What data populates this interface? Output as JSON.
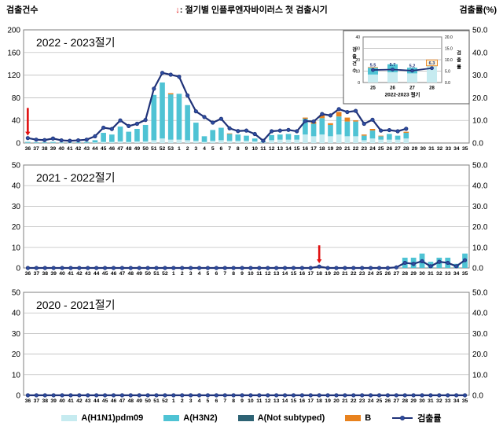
{
  "header": {
    "left_label": "검출건수",
    "arrow": "↓",
    "center_label": ": 절기별 인플루엔자바이러스 첫 검출시기",
    "right_label": "검출률(%)"
  },
  "colors": {
    "h1n1": "#c6ebf0",
    "h3n2": "#4fc3d4",
    "a_not_subtyped": "#2e6374",
    "b": "#e8821e",
    "rate_line": "#1f3278",
    "rate_marker": "#2e4da0",
    "arrow": "#e01010",
    "grid": "#b3b3b3",
    "border": "#7f7f7f"
  },
  "legend": [
    {
      "name": "a-h1n1pdm09",
      "label": "A(H1N1)pdm09",
      "color": "#c6ebf0",
      "type": "box"
    },
    {
      "name": "a-h3n2",
      "label": "A(H3N2)",
      "color": "#4fc3d4",
      "type": "box"
    },
    {
      "name": "a-not-subtyped",
      "label": "A(Not subtyped)",
      "color": "#2e6374",
      "type": "box"
    },
    {
      "name": "b",
      "label": "B",
      "color": "#e8821e",
      "type": "box"
    },
    {
      "name": "rate",
      "label": "검출률",
      "color": "#1f3278",
      "type": "line"
    }
  ],
  "chart_data": [
    {
      "type": "bar+line",
      "title": "2022 - 2023절기",
      "categories": [
        "36",
        "37",
        "38",
        "39",
        "40",
        "41",
        "42",
        "43",
        "44",
        "45",
        "46",
        "47",
        "48",
        "49",
        "50",
        "51",
        "52",
        "53",
        "1",
        "2",
        "3",
        "4",
        "5",
        "6",
        "7",
        "8",
        "9",
        "10",
        "11",
        "12",
        "13",
        "14",
        "15",
        "16",
        "17",
        "18",
        "19",
        "20",
        "21",
        "22",
        "23",
        "24",
        "25",
        "26",
        "27",
        "28",
        "29",
        "30",
        "31",
        "32",
        "33",
        "34",
        "35"
      ],
      "left_axis": {
        "ticks": [
          0,
          40,
          80,
          120,
          160,
          200
        ],
        "max": 200
      },
      "right_axis": {
        "ticks": [
          "0.0",
          "10.0",
          "20.0",
          "30.0",
          "40.0",
          "50.0"
        ],
        "max": 50
      },
      "series": [
        {
          "name": "A(H1N1)pdm09",
          "values": [
            0.5,
            0.5,
            0.5,
            0.5,
            0.3,
            0.3,
            0.5,
            0.5,
            1,
            2,
            2,
            3,
            2,
            3,
            3,
            5,
            8,
            6,
            6,
            5,
            4,
            2,
            4,
            5,
            4,
            4,
            4,
            3,
            1,
            5,
            6,
            6,
            6,
            15,
            12,
            15,
            12,
            15,
            12,
            12,
            5,
            8,
            6,
            6,
            6,
            8,
            0,
            0,
            0,
            0,
            0,
            0,
            0
          ]
        },
        {
          "name": "A(H3N2)",
          "values": [
            1.5,
            1,
            1,
            1.5,
            0.7,
            0.7,
            1,
            1.5,
            4,
            16,
            13,
            26,
            18,
            22,
            29,
            80,
            99,
            80,
            81,
            62,
            32,
            10,
            19,
            22,
            12,
            11,
            9,
            5,
            2,
            9,
            9,
            10,
            8,
            28,
            22,
            29,
            20,
            32,
            26,
            26,
            8,
            14,
            6,
            10,
            7,
            10,
            0,
            0,
            0,
            0,
            0,
            0,
            0
          ]
        },
        {
          "name": "B",
          "values": [
            0,
            0,
            0,
            0,
            0,
            0,
            0,
            0,
            0,
            0,
            0,
            0,
            0,
            0,
            0,
            0,
            0,
            2,
            0,
            0,
            0,
            0,
            0,
            0,
            1,
            0,
            0,
            0,
            0,
            0,
            0,
            0,
            0,
            2,
            4,
            6,
            3,
            8,
            7,
            2,
            2,
            3,
            1,
            0,
            0,
            2,
            0,
            0,
            0,
            0,
            0,
            0,
            0
          ]
        }
      ],
      "rate": [
        2.2,
        1.5,
        1.3,
        2.0,
        1.2,
        1.0,
        1.2,
        1.5,
        3.0,
        6.8,
        6.2,
        10.0,
        7.5,
        8.5,
        10.2,
        24.0,
        31.0,
        30.2,
        29.3,
        21.0,
        14.0,
        11.5,
        9.0,
        10.7,
        6.5,
        5.3,
        5.5,
        4.0,
        1.0,
        5.2,
        5.5,
        5.8,
        5.2,
        9.7,
        9.5,
        12.8,
        12.2,
        15.0,
        13.7,
        14.2,
        8.5,
        10.3,
        5.5,
        5.7,
        5.2,
        6.3,
        null,
        null,
        null,
        null,
        null,
        null,
        null
      ],
      "first_detection_arrow": {
        "week": "36",
        "from": 62,
        "to": 13
      },
      "inset": {
        "type": "bar+line",
        "x_title": "2022-2023 절기",
        "left_label": "검출건수",
        "right_label": "검출률",
        "categories": [
          "25",
          "26",
          "27",
          "28"
        ],
        "left_axis": {
          "ticks": [
            0,
            10,
            20,
            30,
            40
          ],
          "max": 40
        },
        "right_axis": {
          "ticks": [
            "0.0",
            "5.0",
            "10.0",
            "15.0",
            "20.0"
          ],
          "max": 20
        },
        "series": [
          {
            "name": "A(H1N1)pdm09",
            "values": [
              7,
              9,
              8,
              16
            ]
          },
          {
            "name": "A(H3N2)",
            "values": [
              6,
              7,
              5,
              3
            ]
          },
          {
            "name": "B",
            "values": [
              0.5,
              0,
              0,
              1
            ]
          }
        ],
        "rate": [
          5.5,
          5.7,
          5.2,
          6.3
        ],
        "rate_labels": [
          "5.5",
          "5.7",
          "5.2",
          "6.3"
        ],
        "boxed_label_index": 3
      }
    },
    {
      "type": "bar+line",
      "title": "2021 - 2022절기",
      "categories": [
        "36",
        "37",
        "38",
        "39",
        "40",
        "41",
        "42",
        "43",
        "44",
        "45",
        "46",
        "47",
        "48",
        "49",
        "50",
        "51",
        "52",
        "1",
        "2",
        "3",
        "4",
        "5",
        "6",
        "7",
        "8",
        "9",
        "10",
        "11",
        "12",
        "13",
        "14",
        "15",
        "16",
        "17",
        "18",
        "19",
        "20",
        "21",
        "22",
        "23",
        "24",
        "25",
        "26",
        "27",
        "28",
        "29",
        "30",
        "31",
        "32",
        "33",
        "34",
        "35"
      ],
      "left_axis": {
        "ticks": [
          0,
          10,
          20,
          30,
          40,
          50
        ],
        "max": 50
      },
      "right_axis": {
        "ticks": [
          "0.0",
          "10.0",
          "20.0",
          "30.0",
          "40.0",
          "50.0"
        ],
        "max": 50
      },
      "series": [
        {
          "name": "A(H3N2)",
          "values": [
            0,
            0,
            0,
            0,
            0,
            0,
            0,
            0,
            0,
            0,
            0,
            0,
            0,
            0,
            0,
            0,
            0,
            0,
            0,
            0,
            0,
            0,
            0,
            0,
            0,
            0,
            0,
            0,
            0,
            0,
            0,
            0,
            0,
            0,
            0,
            0,
            0,
            0,
            0,
            0,
            0,
            0,
            0,
            0,
            5,
            5,
            7,
            3,
            5,
            5,
            2,
            7
          ]
        }
      ],
      "rate": [
        0,
        0,
        0,
        0,
        0,
        0,
        0,
        0,
        0,
        0,
        0,
        0,
        0,
        0,
        0,
        0,
        0,
        0,
        0,
        0,
        0,
        0,
        0,
        0,
        0,
        0,
        0,
        0,
        0,
        0,
        0,
        0,
        0,
        0,
        0.7,
        0,
        0,
        0,
        0,
        0,
        0,
        0,
        0,
        0.3,
        2.5,
        2.0,
        3.3,
        0.8,
        3.0,
        2.5,
        0.8,
        3.8
      ],
      "first_detection_arrow": {
        "week": "18",
        "from": 11,
        "to": 2.3
      }
    },
    {
      "type": "bar+line",
      "title": "2020 - 2021절기",
      "categories": [
        "36",
        "37",
        "38",
        "39",
        "40",
        "41",
        "42",
        "43",
        "44",
        "45",
        "46",
        "47",
        "48",
        "49",
        "50",
        "51",
        "52",
        "1",
        "2",
        "3",
        "4",
        "5",
        "6",
        "7",
        "8",
        "9",
        "10",
        "11",
        "12",
        "13",
        "14",
        "15",
        "16",
        "17",
        "18",
        "19",
        "20",
        "21",
        "22",
        "23",
        "24",
        "25",
        "26",
        "27",
        "28",
        "29",
        "30",
        "31",
        "32",
        "33",
        "34",
        "35"
      ],
      "left_axis": {
        "ticks": [
          0,
          10,
          20,
          30,
          40,
          50
        ],
        "max": 50
      },
      "right_axis": {
        "ticks": [
          "0.0",
          "10.0",
          "20.0",
          "30.0",
          "40.0",
          "50.0"
        ],
        "max": 50
      },
      "series": [
        {
          "name": "A(H3N2)",
          "values": [
            0,
            0,
            0,
            0,
            0,
            0,
            0,
            0,
            0,
            0,
            0,
            0,
            0,
            0,
            0,
            0,
            0,
            0,
            0,
            0,
            0,
            0,
            0,
            0,
            0,
            0,
            0,
            0,
            0,
            0,
            0,
            0,
            0,
            0,
            0,
            0,
            0,
            0,
            0,
            0,
            0,
            0,
            0,
            0,
            0,
            0,
            0,
            0,
            0,
            0,
            0,
            0
          ]
        }
      ],
      "rate": [
        0,
        0,
        0,
        0,
        0,
        0,
        0,
        0,
        0,
        0,
        0,
        0,
        0,
        0,
        0,
        0,
        0,
        0,
        0,
        0,
        0,
        0,
        0,
        0,
        0,
        0,
        0,
        0,
        0,
        0,
        0,
        0,
        0,
        0,
        0,
        0,
        0,
        0,
        0,
        0,
        0,
        0,
        0,
        0,
        0,
        0,
        0,
        0,
        0,
        0,
        0,
        0
      ]
    }
  ]
}
